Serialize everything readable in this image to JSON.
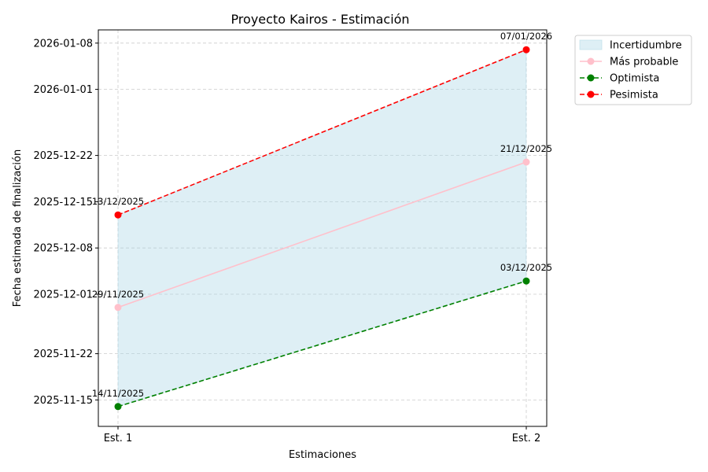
{
  "chart_data": {
    "type": "line",
    "title": "Proyecto Kairos - Estimación",
    "xlabel": "Estimaciones",
    "ylabel": "Fecha estimada de finalización",
    "categories": [
      "Est. 1",
      "Est. 2"
    ],
    "series": [
      {
        "name": "Más probable",
        "values": [
          "2025-11-29",
          "2025-12-21"
        ],
        "color": "#ffc0cb",
        "style": "solid",
        "labels": [
          "29/11/2025",
          "21/12/2025"
        ]
      },
      {
        "name": "Optimista",
        "values": [
          "2025-11-14",
          "2025-12-03"
        ],
        "color": "#008000",
        "style": "dashed",
        "labels": [
          "14/11/2025",
          "03/12/2025"
        ]
      },
      {
        "name": "Pesimista",
        "values": [
          "2025-12-13",
          "2026-01-07"
        ],
        "color": "#ff0000",
        "style": "dashed",
        "labels": [
          "13/12/2025",
          "07/01/2026"
        ]
      }
    ],
    "band": {
      "name": "Incertidumbre",
      "lower": [
        "2025-11-14",
        "2025-12-03"
      ],
      "upper": [
        "2025-12-13",
        "2026-01-07"
      ],
      "color": "#add8e6"
    },
    "ylim": [
      "2025-11-11",
      "2026-01-10"
    ],
    "yticks": [
      "2025-11-15",
      "2025-11-22",
      "2025-12-01",
      "2025-12-08",
      "2025-12-15",
      "2025-12-22",
      "2026-01-01",
      "2026-01-08"
    ],
    "grid": true,
    "legend_position": "outside-top-right"
  }
}
